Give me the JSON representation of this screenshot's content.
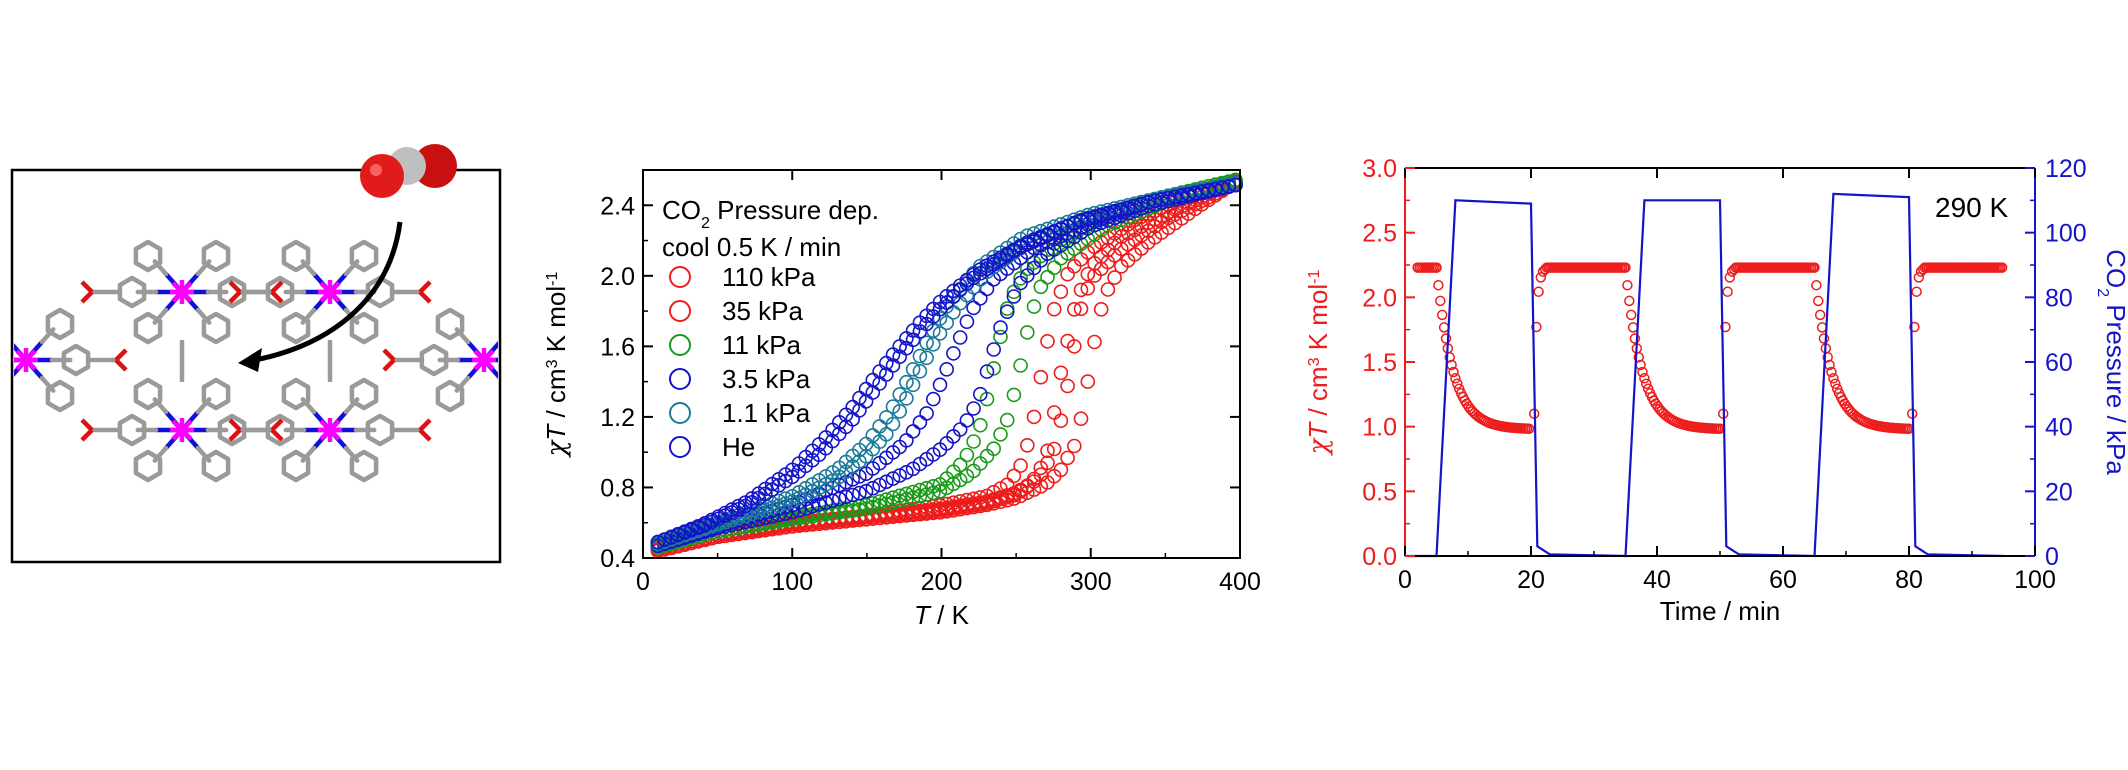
{
  "structure_panel": {
    "guest_molecule": "CO2",
    "colors": {
      "carbon": "#9a9a9a",
      "nitrogen": "#1010d8",
      "metal": "#ff00ff",
      "oxygen": "#dd1111",
      "arrow": "#000000"
    }
  },
  "chart_data": [
    {
      "type": "scatter",
      "legend_title_line1_main": "CO",
      "legend_title_line1_sub": "2",
      "legend_title_line1_rest": " Pressure dep.",
      "legend_title_line2": "cool 0.5 K / min",
      "legend_position": "top-left",
      "xlabel_italic": "T",
      "xlabel_rest": " / K",
      "ylabel_parts": {
        "chi": "χ",
        "T": "T",
        "unit": " / cm",
        "exp3": "3",
        "K": " K mol",
        "expm1": "-1"
      },
      "xlim": [
        0,
        400
      ],
      "ylim": [
        0.4,
        2.6
      ],
      "xticks": [
        0,
        100,
        200,
        300,
        400
      ],
      "yticks": [
        0.4,
        0.8,
        1.2,
        1.6,
        2.0,
        2.4
      ],
      "ytick_labels": [
        "0.4",
        "0.8",
        "1.2",
        "1.6",
        "2.0",
        "2.4"
      ],
      "marker": "open-circle",
      "series": [
        {
          "name": "110 kPa",
          "color": "#ee1c1c",
          "cooling": [
            [
              10,
              0.44
            ],
            [
              50,
              0.52
            ],
            [
              100,
              0.58
            ],
            [
              150,
              0.62
            ],
            [
              200,
              0.66
            ],
            [
              230,
              0.7
            ],
            [
              250,
              0.74
            ],
            [
              270,
              0.82
            ],
            [
              280,
              0.9
            ],
            [
              290,
              1.05
            ],
            [
              295,
              1.25
            ],
            [
              300,
              1.5
            ],
            [
              305,
              1.75
            ],
            [
              310,
              1.9
            ],
            [
              320,
              2.05
            ],
            [
              340,
              2.2
            ],
            [
              370,
              2.38
            ],
            [
              400,
              2.55
            ]
          ],
          "heating": [
            [
              10,
              0.44
            ],
            [
              50,
              0.52
            ],
            [
              100,
              0.58
            ],
            [
              150,
              0.62
            ],
            [
              200,
              0.67
            ],
            [
              230,
              0.71
            ],
            [
              250,
              0.76
            ],
            [
              260,
              0.82
            ],
            [
              270,
              0.96
            ],
            [
              275,
              1.2
            ],
            [
              280,
              1.45
            ],
            [
              285,
              1.65
            ],
            [
              290,
              1.85
            ],
            [
              300,
              2.05
            ],
            [
              320,
              2.22
            ],
            [
              350,
              2.35
            ],
            [
              380,
              2.47
            ],
            [
              400,
              2.55
            ]
          ]
        },
        {
          "name": "35 kPa",
          "color": "#ee1c1c",
          "cooling": [
            [
              10,
              0.45
            ],
            [
              50,
              0.53
            ],
            [
              100,
              0.59
            ],
            [
              150,
              0.63
            ],
            [
              200,
              0.68
            ],
            [
              230,
              0.72
            ],
            [
              250,
              0.77
            ],
            [
              265,
              0.85
            ],
            [
              275,
              1.0
            ],
            [
              282,
              1.25
            ],
            [
              288,
              1.55
            ],
            [
              293,
              1.8
            ],
            [
              300,
              1.98
            ],
            [
              320,
              2.15
            ],
            [
              350,
              2.32
            ],
            [
              380,
              2.45
            ],
            [
              400,
              2.55
            ]
          ],
          "heating": [
            [
              10,
              0.45
            ],
            [
              50,
              0.53
            ],
            [
              100,
              0.6
            ],
            [
              150,
              0.64
            ],
            [
              200,
              0.7
            ],
            [
              230,
              0.75
            ],
            [
              245,
              0.82
            ],
            [
              255,
              0.95
            ],
            [
              262,
              1.2
            ],
            [
              268,
              1.5
            ],
            [
              275,
              1.8
            ],
            [
              285,
              2.02
            ],
            [
              300,
              2.15
            ],
            [
              330,
              2.32
            ],
            [
              370,
              2.47
            ],
            [
              400,
              2.55
            ]
          ]
        },
        {
          "name": "11 kPa",
          "color": "#1a9a1a",
          "cooling": [
            [
              10,
              0.46
            ],
            [
              50,
              0.55
            ],
            [
              100,
              0.62
            ],
            [
              150,
              0.68
            ],
            [
              200,
              0.78
            ],
            [
              220,
              0.88
            ],
            [
              235,
              1.02
            ],
            [
              245,
              1.2
            ],
            [
              252,
              1.45
            ],
            [
              258,
              1.7
            ],
            [
              265,
              1.92
            ],
            [
              280,
              2.1
            ],
            [
              310,
              2.28
            ],
            [
              350,
              2.42
            ],
            [
              400,
              2.55
            ]
          ],
          "heating": [
            [
              10,
              0.46
            ],
            [
              50,
              0.55
            ],
            [
              100,
              0.63
            ],
            [
              150,
              0.7
            ],
            [
              200,
              0.82
            ],
            [
              215,
              0.95
            ],
            [
              225,
              1.12
            ],
            [
              232,
              1.35
            ],
            [
              238,
              1.6
            ],
            [
              245,
              1.85
            ],
            [
              255,
              2.02
            ],
            [
              275,
              2.18
            ],
            [
              310,
              2.35
            ],
            [
              350,
              2.45
            ],
            [
              400,
              2.55
            ]
          ]
        },
        {
          "name": "3.5 kPa",
          "color": "#1414c8",
          "cooling": [
            [
              10,
              0.47
            ],
            [
              50,
              0.57
            ],
            [
              100,
              0.66
            ],
            [
              150,
              0.78
            ],
            [
              180,
              0.9
            ],
            [
              200,
              1.02
            ],
            [
              215,
              1.15
            ],
            [
              225,
              1.3
            ],
            [
              232,
              1.5
            ],
            [
              240,
              1.72
            ],
            [
              252,
              1.95
            ],
            [
              270,
              2.12
            ],
            [
              300,
              2.28
            ],
            [
              340,
              2.4
            ],
            [
              400,
              2.52
            ]
          ],
          "heating": [
            [
              10,
              0.47
            ],
            [
              50,
              0.58
            ],
            [
              100,
              0.7
            ],
            [
              150,
              0.88
            ],
            [
              175,
              1.05
            ],
            [
              190,
              1.22
            ],
            [
              200,
              1.4
            ],
            [
              210,
              1.6
            ],
            [
              220,
              1.8
            ],
            [
              235,
              1.98
            ],
            [
              260,
              2.15
            ],
            [
              300,
              2.3
            ],
            [
              340,
              2.42
            ],
            [
              400,
              2.52
            ]
          ]
        },
        {
          "name": "1.1 kPa",
          "color": "#1a7a9a",
          "cooling": [
            [
              10,
              0.48
            ],
            [
              50,
              0.59
            ],
            [
              100,
              0.72
            ],
            [
              130,
              0.85
            ],
            [
              150,
              0.98
            ],
            [
              165,
              1.12
            ],
            [
              175,
              1.28
            ],
            [
              185,
              1.45
            ],
            [
              195,
              1.62
            ],
            [
              210,
              1.82
            ],
            [
              230,
              2.02
            ],
            [
              260,
              2.2
            ],
            [
              300,
              2.33
            ],
            [
              350,
              2.44
            ],
            [
              400,
              2.53
            ]
          ],
          "heating": [
            [
              10,
              0.48
            ],
            [
              50,
              0.6
            ],
            [
              100,
              0.75
            ],
            [
              130,
              0.9
            ],
            [
              150,
              1.05
            ],
            [
              165,
              1.22
            ],
            [
              178,
              1.42
            ],
            [
              190,
              1.62
            ],
            [
              205,
              1.85
            ],
            [
              225,
              2.05
            ],
            [
              255,
              2.22
            ],
            [
              300,
              2.35
            ],
            [
              350,
              2.45
            ],
            [
              400,
              2.53
            ]
          ]
        },
        {
          "name": "He",
          "color": "#1414c8",
          "cooling": [
            [
              10,
              0.49
            ],
            [
              40,
              0.58
            ],
            [
              70,
              0.7
            ],
            [
              100,
              0.86
            ],
            [
              120,
              1.0
            ],
            [
              140,
              1.18
            ],
            [
              155,
              1.35
            ],
            [
              170,
              1.52
            ],
            [
              185,
              1.68
            ],
            [
              200,
              1.82
            ],
            [
              220,
              1.98
            ],
            [
              250,
              2.15
            ],
            [
              290,
              2.3
            ],
            [
              340,
              2.42
            ],
            [
              400,
              2.52
            ]
          ],
          "heating": [
            [
              10,
              0.49
            ],
            [
              40,
              0.59
            ],
            [
              70,
              0.72
            ],
            [
              100,
              0.9
            ],
            [
              120,
              1.06
            ],
            [
              140,
              1.25
            ],
            [
              155,
              1.42
            ],
            [
              170,
              1.58
            ],
            [
              185,
              1.73
            ],
            [
              200,
              1.86
            ],
            [
              225,
              2.03
            ],
            [
              255,
              2.18
            ],
            [
              295,
              2.32
            ],
            [
              345,
              2.43
            ],
            [
              400,
              2.52
            ]
          ]
        }
      ]
    },
    {
      "type": "line",
      "annotation": "290 K",
      "xlabel": "Time / min",
      "xlim": [
        0,
        100
      ],
      "xticks": [
        0,
        20,
        40,
        60,
        80,
        100
      ],
      "left_axis": {
        "color": "#ee1c1c",
        "label_parts": {
          "chi": "χ",
          "T": "T",
          "unit": " / cm",
          "exp3": "3",
          "K": " K mol",
          "expm1": "-1"
        },
        "ylim": [
          0,
          3.0
        ],
        "yticks": [
          0,
          0.5,
          1.0,
          1.5,
          2.0,
          2.5,
          3.0
        ],
        "ytick_labels": [
          "0.0",
          "0.5",
          "1.0",
          "1.5",
          "2.0",
          "2.5",
          "3.0"
        ]
      },
      "right_axis": {
        "color": "#1414c8",
        "label_main": "CO",
        "label_sub": "2",
        "label_rest": " Pressure / kPa",
        "ylim": [
          0,
          120
        ],
        "yticks": [
          0,
          20,
          40,
          60,
          80,
          100,
          120
        ],
        "ytick_labels": [
          "0",
          "20",
          "40",
          "60",
          "80",
          "100",
          "120"
        ]
      },
      "series": [
        {
          "name": "χT",
          "axis": "left",
          "marker": "open-circle",
          "color": "#ee1c1c",
          "cycles": [
            {
              "high": 2.23,
              "low": 0.98,
              "plateau_start": 0,
              "drop_start": 5,
              "drop_end": 20,
              "next_start": 20.5
            },
            {
              "high": 2.23,
              "low": 0.98,
              "plateau_start": 20.5,
              "drop_start": 35,
              "drop_end": 50,
              "next_start": 50.5
            },
            {
              "high": 2.23,
              "low": 0.98,
              "plateau_start": 50.5,
              "drop_start": 65,
              "drop_end": 80,
              "next_start": 80.5
            },
            {
              "high": 2.23,
              "low": null,
              "plateau_start": 80.5,
              "drop_start": 95,
              "drop_end": null,
              "next_start": null
            }
          ]
        },
        {
          "name": "CO2 pressure",
          "axis": "right",
          "marker": "line",
          "color": "#1414c8",
          "points": [
            [
              0,
              0
            ],
            [
              5,
              0
            ],
            [
              8,
              110
            ],
            [
              20,
              109
            ],
            [
              21,
              3
            ],
            [
              23,
              0.5
            ],
            [
              35,
              0
            ],
            [
              38,
              110
            ],
            [
              50,
              110
            ],
            [
              51,
              3
            ],
            [
              53,
              0.5
            ],
            [
              65,
              0
            ],
            [
              68,
              112
            ],
            [
              80,
              111
            ],
            [
              81,
              3
            ],
            [
              83,
              0.5
            ],
            [
              95,
              0
            ]
          ]
        }
      ]
    }
  ]
}
